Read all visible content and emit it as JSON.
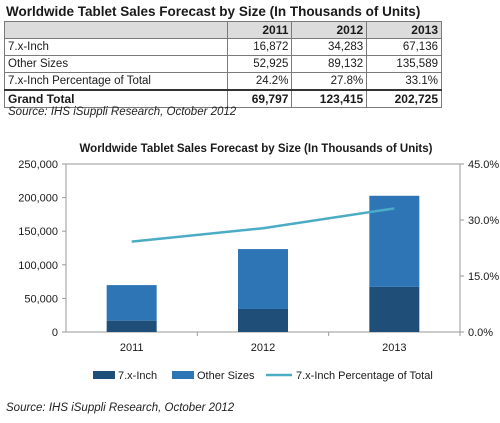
{
  "table": {
    "title": "Worldwide Tablet Sales Forecast by Size (In Thousands of Units)",
    "years": [
      "2011",
      "2012",
      "2013"
    ],
    "rows": [
      {
        "label": "7.x-Inch",
        "values": [
          "16,872",
          "34,283",
          "67,136"
        ]
      },
      {
        "label": "Other Sizes",
        "values": [
          "52,925",
          "89,132",
          "135,589"
        ]
      },
      {
        "label": "7.x-Inch Percentage of Total",
        "values": [
          "24.2%",
          "27.8%",
          "33.1%"
        ]
      }
    ],
    "total": {
      "label": "Grand Total",
      "values": [
        "69,797",
        "123,415",
        "202,725"
      ]
    },
    "source": "Source: IHS iSuppli Research, October 2012"
  },
  "chart_data": {
    "type": "bar",
    "stacked": true,
    "title": "Worldwide Tablet Sales Forecast by Size (In Thousands of Units)",
    "categories": [
      "2011",
      "2012",
      "2013"
    ],
    "series": [
      {
        "name": "7.x-Inch",
        "type": "bar",
        "axis": "left",
        "color": "#1f4e79",
        "values": [
          16872,
          34283,
          67136
        ]
      },
      {
        "name": "Other Sizes",
        "type": "bar",
        "axis": "left",
        "color": "#2e75b6",
        "values": [
          52925,
          89132,
          135589
        ]
      },
      {
        "name": "7.x-Inch Percentage of Total",
        "type": "line",
        "axis": "right",
        "color": "#4bacc6",
        "values": [
          24.2,
          27.8,
          33.1
        ]
      }
    ],
    "ylim": [
      0,
      250000
    ],
    "yticks": [
      "0",
      "50,000",
      "100,000",
      "150,000",
      "200,000",
      "250,000"
    ],
    "y2lim": [
      0,
      45
    ],
    "y2ticks": [
      "0.0%",
      "15.0%",
      "30.0%",
      "45.0%"
    ],
    "xlabel": "",
    "ylabel": "",
    "legend_position": "bottom",
    "grid": false,
    "source": "Source: IHS iSuppli Research, October 2012"
  }
}
